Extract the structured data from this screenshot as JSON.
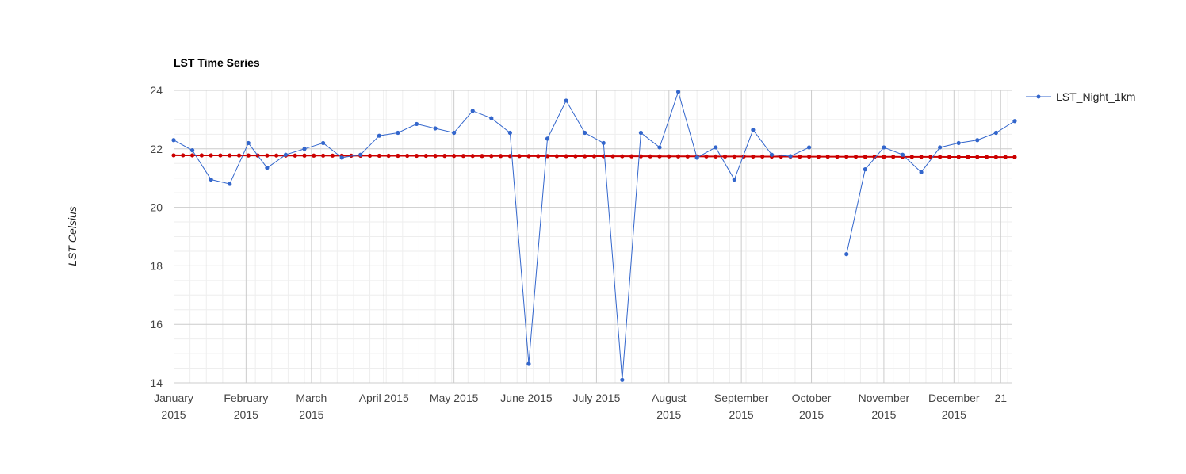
{
  "chart_data": {
    "type": "line",
    "title": "LST  Time Series",
    "ylabel": "LST Celsius",
    "xlabel": "",
    "ylim": [
      14,
      24
    ],
    "yticks": [
      14,
      16,
      18,
      20,
      22,
      24
    ],
    "x_axis_labels": [
      {
        "line1": "January",
        "line2": "2015",
        "day": 0
      },
      {
        "line1": "February",
        "line2": "2015",
        "day": 31
      },
      {
        "line1": "March",
        "line2": "2015",
        "day": 59
      },
      {
        "line1": "April 2015",
        "line2": "",
        "day": 90
      },
      {
        "line1": "May 2015",
        "line2": "",
        "day": 120
      },
      {
        "line1": "June 2015",
        "line2": "",
        "day": 151
      },
      {
        "line1": "July 2015",
        "line2": "",
        "day": 181
      },
      {
        "line1": "August",
        "line2": "2015",
        "day": 212
      },
      {
        "line1": "September",
        "line2": "2015",
        "day": 243
      },
      {
        "line1": "October",
        "line2": "2015",
        "day": 273
      },
      {
        "line1": "November",
        "line2": "2015",
        "day": 304
      },
      {
        "line1": "December",
        "line2": "2015",
        "day": 334
      },
      {
        "line1": "21",
        "line2": "",
        "day": 354
      }
    ],
    "x_start_day": 0,
    "x_end_day": 359,
    "legend": "top-right",
    "series": [
      {
        "name": "LST_Night_1km",
        "color": "#3366cc",
        "step_days": 8,
        "values": [
          22.3,
          21.95,
          20.95,
          20.8,
          22.2,
          21.35,
          21.8,
          22.0,
          22.2,
          21.7,
          21.8,
          22.45,
          22.55,
          22.85,
          22.7,
          22.55,
          23.3,
          23.05,
          22.55,
          14.65,
          22.35,
          23.65,
          22.55,
          22.2,
          14.1,
          22.55,
          22.05,
          23.95,
          21.7,
          22.05,
          20.95,
          22.65,
          21.8,
          21.75,
          22.05,
          null,
          18.4,
          21.3,
          22.05,
          21.8,
          21.2,
          22.05,
          22.2,
          22.3,
          22.55,
          22.95
        ]
      },
      {
        "name": "trend",
        "color": "#cc0000",
        "show_in_legend": false,
        "step_days": 4,
        "start_value": 21.78,
        "end_value": 21.72,
        "count": 91
      }
    ]
  }
}
